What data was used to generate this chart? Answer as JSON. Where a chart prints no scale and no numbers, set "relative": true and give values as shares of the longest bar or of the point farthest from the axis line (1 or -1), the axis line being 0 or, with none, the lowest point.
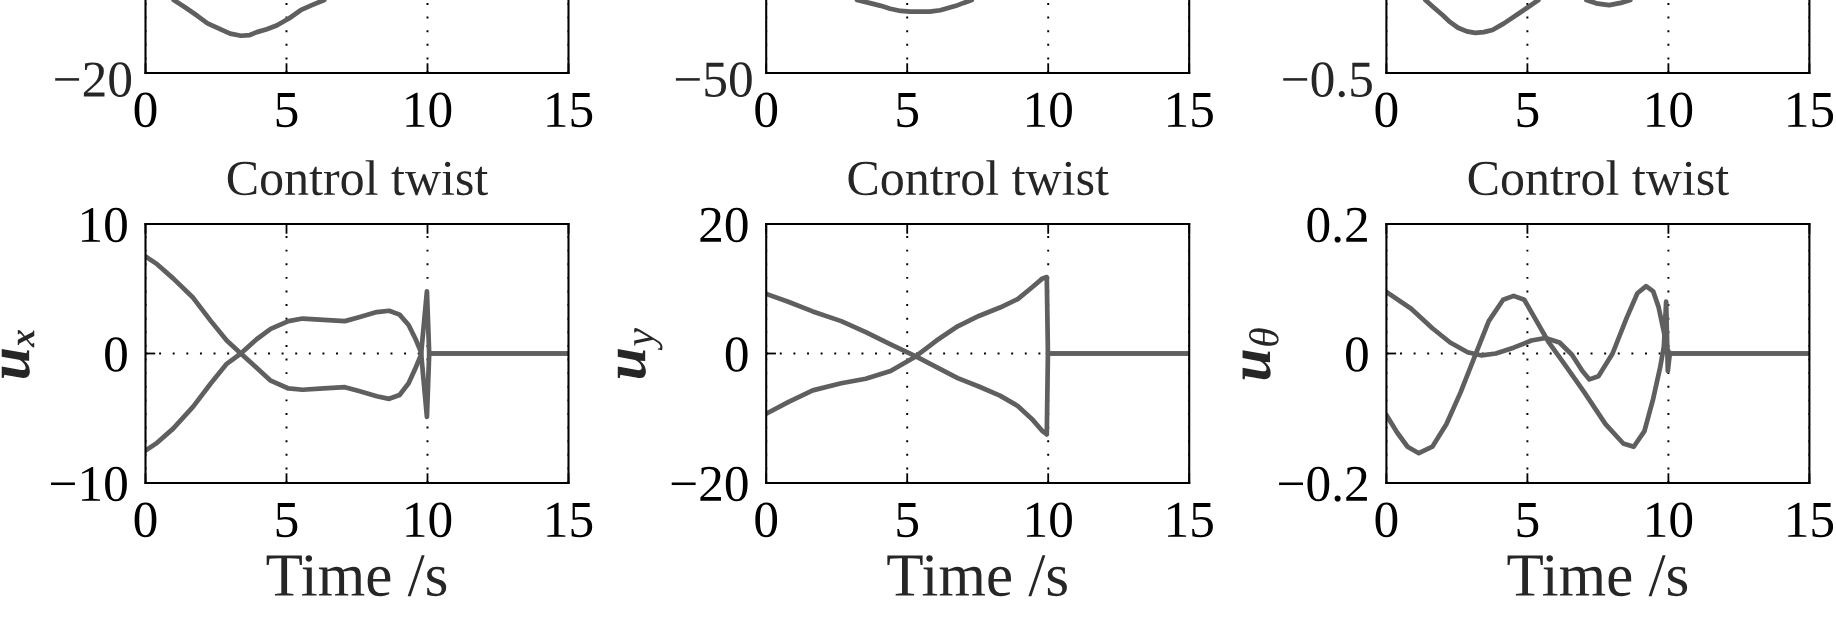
{
  "chart_data": [
    {
      "type": "line",
      "relative": true,
      "xlim": [
        0,
        15
      ],
      "xticks": [
        0,
        5,
        10,
        15
      ],
      "grid": "x",
      "annotations": [
        "−20"
      ],
      "series": [
        {
          "color": "#5f5f5f",
          "x": [
            1.0,
            1.4,
            1.85,
            2.2,
            2.59,
            3.0,
            3.39,
            3.7,
            3.95,
            4.3,
            4.65,
            5.1,
            5.5,
            5.9,
            6.34
          ],
          "values": [
            1,
            0.9,
            0.78,
            0.68,
            0.61,
            0.54,
            0.51,
            0.52,
            0.56,
            0.6,
            0.65,
            0.75,
            0.86,
            0.93,
            1
          ]
        }
      ]
    },
    {
      "type": "line",
      "relative": true,
      "xlim": [
        0,
        15
      ],
      "xticks": [
        0,
        5,
        10,
        15
      ],
      "grid": "x",
      "annotations": [
        "−50"
      ],
      "series": [
        {
          "color": "#5f5f5f",
          "x": [
            3.22,
            3.65,
            4.07,
            4.4,
            4.77,
            5.1,
            5.47,
            5.8,
            6.17,
            6.45,
            6.73,
            7.0,
            7.29
          ],
          "values": [
            1,
            0.96,
            0.92,
            0.88,
            0.85,
            0.84,
            0.84,
            0.84,
            0.86,
            0.89,
            0.92,
            0.96,
            1
          ]
        }
      ]
    },
    {
      "type": "line",
      "relative": true,
      "xlim": [
        0,
        15
      ],
      "xticks": [
        0,
        5,
        10,
        15
      ],
      "grid": "x",
      "annotations": [
        "−0.5"
      ],
      "series": [
        {
          "color": "#5f5f5f",
          "x": [
            1.38,
            1.7,
            2.0,
            2.25,
            2.54,
            2.85,
            3.15,
            3.45,
            3.76,
            4.17,
            4.6,
            4.98,
            5.39
          ],
          "values": [
            1,
            0.89,
            0.79,
            0.7,
            0.62,
            0.57,
            0.55,
            0.56,
            0.59,
            0.68,
            0.79,
            0.89,
            1
          ]
        },
        {
          "color": "#5f5f5f",
          "x": [
            7.09,
            7.49,
            7.9,
            8.31,
            8.65
          ],
          "values": [
            1,
            0.95,
            0.93,
            0.96,
            1
          ]
        }
      ]
    },
    {
      "type": "line",
      "title": "Control twist",
      "xlabel": "Time /s",
      "ylabel": "uₓ",
      "xlim": [
        0,
        15
      ],
      "xticks": [
        0,
        5,
        10,
        15
      ],
      "ylim": [
        -10,
        10
      ],
      "yticks": [
        -10,
        0,
        10
      ],
      "grid": true,
      "series": [
        {
          "color": "#5f5f5f",
          "x": [
            0,
            0.41,
            0.98,
            1.69,
            2.32,
            2.88,
            3.38,
            3.94,
            4.44,
            5.07,
            5.57,
            6.32,
            7.07,
            7.57,
            8.2,
            8.64,
            9.01,
            9.33,
            9.58,
            9.77,
            9.98,
            10.06,
            15
          ],
          "values": [
            7.5,
            6.9,
            5.8,
            4.3,
            2.5,
            1.0,
            0,
            -1.1,
            -2.1,
            -2.7,
            -2.8,
            -2.7,
            -2.6,
            -2.9,
            -3.3,
            -3.5,
            -3.2,
            -2.3,
            -1.1,
            -0.1,
            4.8,
            0,
            0
          ]
        },
        {
          "color": "#5f5f5f",
          "x": [
            0,
            0.41,
            0.98,
            1.69,
            2.32,
            2.88,
            3.38,
            3.94,
            4.44,
            5.07,
            5.57,
            6.32,
            7.07,
            7.57,
            8.2,
            8.64,
            9.01,
            9.33,
            9.58,
            9.77,
            9.98,
            10.06,
            15
          ],
          "values": [
            -7.5,
            -6.9,
            -5.8,
            -4.1,
            -2.3,
            -0.8,
            0,
            1.1,
            1.9,
            2.5,
            2.7,
            2.6,
            2.5,
            2.8,
            3.2,
            3.3,
            3.0,
            2.2,
            1.1,
            0.1,
            -4.9,
            0,
            0
          ]
        }
      ]
    },
    {
      "type": "line",
      "title": "Control twist",
      "xlabel": "Time /s",
      "ylabel": "u$_{y}$",
      "xlim": [
        0,
        15
      ],
      "xticks": [
        0,
        5,
        10,
        15
      ],
      "ylim": [
        -20,
        20
      ],
      "yticks": [
        -20,
        0,
        20
      ],
      "grid": true,
      "series": [
        {
          "color": "#5f5f5f",
          "x": [
            0,
            0.78,
            1.65,
            2.66,
            3.53,
            4.41,
            5.29,
            6.04,
            6.79,
            7.54,
            8.29,
            8.92,
            9.42,
            9.8,
            9.95,
            9.99,
            15
          ],
          "values": [
            9.2,
            8.0,
            6.5,
            5.0,
            3.3,
            1.4,
            -0.4,
            -2.1,
            -3.8,
            -5.1,
            -6.5,
            -8.1,
            -10.1,
            -12.0,
            -12.5,
            0,
            0
          ]
        },
        {
          "color": "#5f5f5f",
          "x": [
            0,
            0.78,
            1.65,
            2.66,
            3.53,
            4.41,
            5.29,
            6.04,
            6.79,
            7.54,
            8.29,
            8.92,
            9.42,
            9.8,
            9.95,
            9.99,
            15
          ],
          "values": [
            -9.3,
            -7.5,
            -5.7,
            -4.6,
            -3.9,
            -2.7,
            -0.5,
            2.0,
            4.2,
            5.8,
            7.1,
            8.4,
            10.2,
            11.6,
            11.8,
            0,
            0
          ]
        }
      ]
    },
    {
      "type": "line",
      "title": "Control twist",
      "xlabel": "Time /s",
      "ylabel": "u$_{θ}$",
      "xlim": [
        0,
        15
      ],
      "xticks": [
        0,
        5,
        10,
        15
      ],
      "ylim": [
        -0.2,
        0.2
      ],
      "yticks": [
        -0.2,
        0,
        0.2
      ],
      "grid": true,
      "series": [
        {
          "color": "#5f5f5f",
          "x": [
            0,
            0.88,
            1.63,
            2.26,
            2.88,
            3.38,
            3.88,
            4.51,
            5.14,
            5.64,
            6.14,
            6.58,
            6.95,
            7.2,
            7.52,
            8.02,
            8.52,
            8.9,
            9.21,
            9.46,
            9.65,
            9.84,
            9.96,
            10.05,
            15
          ],
          "values": [
            0.095,
            0.069,
            0.039,
            0.017,
            0.002,
            -0.003,
            0,
            0.009,
            0.02,
            0.024,
            0.017,
            -0.002,
            -0.027,
            -0.04,
            -0.035,
            0,
            0.055,
            0.093,
            0.104,
            0.096,
            0.072,
            0.033,
            0.006,
            0,
            0
          ]
        },
        {
          "color": "#5f5f5f",
          "x": [
            0,
            0.38,
            0.75,
            1.15,
            1.63,
            2.13,
            2.63,
            3.13,
            3.63,
            4.14,
            4.51,
            4.89,
            5.26,
            5.76,
            6.39,
            7.02,
            7.77,
            8.4,
            8.77,
            9.15,
            9.46,
            9.71,
            9.84,
            9.92,
            9.98,
            10.05,
            15
          ],
          "values": [
            -0.095,
            -0.122,
            -0.144,
            -0.154,
            -0.144,
            -0.109,
            -0.06,
            -0.005,
            0.05,
            0.083,
            0.089,
            0.083,
            0.055,
            0.017,
            -0.021,
            -0.06,
            -0.109,
            -0.139,
            -0.144,
            -0.12,
            -0.07,
            -0.021,
            0.011,
            0.08,
            -0.027,
            0,
            0
          ]
        }
      ]
    }
  ]
}
